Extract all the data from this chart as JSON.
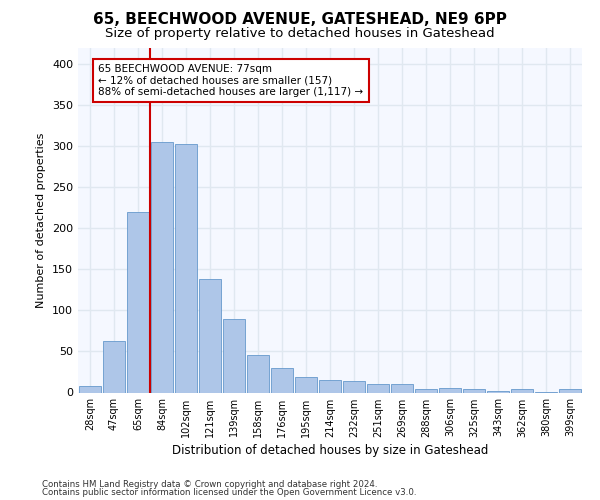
{
  "title": "65, BEECHWOOD AVENUE, GATESHEAD, NE9 6PP",
  "subtitle": "Size of property relative to detached houses in Gateshead",
  "xlabel": "Distribution of detached houses by size in Gateshead",
  "ylabel": "Number of detached properties",
  "categories": [
    "28sqm",
    "47sqm",
    "65sqm",
    "84sqm",
    "102sqm",
    "121sqm",
    "139sqm",
    "158sqm",
    "176sqm",
    "195sqm",
    "214sqm",
    "232sqm",
    "251sqm",
    "269sqm",
    "288sqm",
    "306sqm",
    "325sqm",
    "343sqm",
    "362sqm",
    "380sqm",
    "399sqm"
  ],
  "values": [
    8,
    63,
    220,
    305,
    302,
    138,
    90,
    46,
    30,
    19,
    15,
    14,
    10,
    10,
    4,
    5,
    4,
    2,
    4,
    1,
    4
  ],
  "bar_color": "#aec6e8",
  "bar_edge_color": "#6699cc",
  "vline_color": "#cc0000",
  "annotation_text": "65 BEECHWOOD AVENUE: 77sqm\n← 12% of detached houses are smaller (157)\n88% of semi-detached houses are larger (1,117) →",
  "annotation_box_color": "#ffffff",
  "annotation_box_edge_color": "#cc0000",
  "ylim": [
    0,
    420
  ],
  "yticks": [
    0,
    50,
    100,
    150,
    200,
    250,
    300,
    350,
    400
  ],
  "footer1": "Contains HM Land Registry data © Crown copyright and database right 2024.",
  "footer2": "Contains public sector information licensed under the Open Government Licence v3.0.",
  "bg_color": "#ffffff",
  "plot_bg_color": "#f5f8ff",
  "grid_color": "#e0e8f0",
  "title_fontsize": 11,
  "subtitle_fontsize": 9.5
}
